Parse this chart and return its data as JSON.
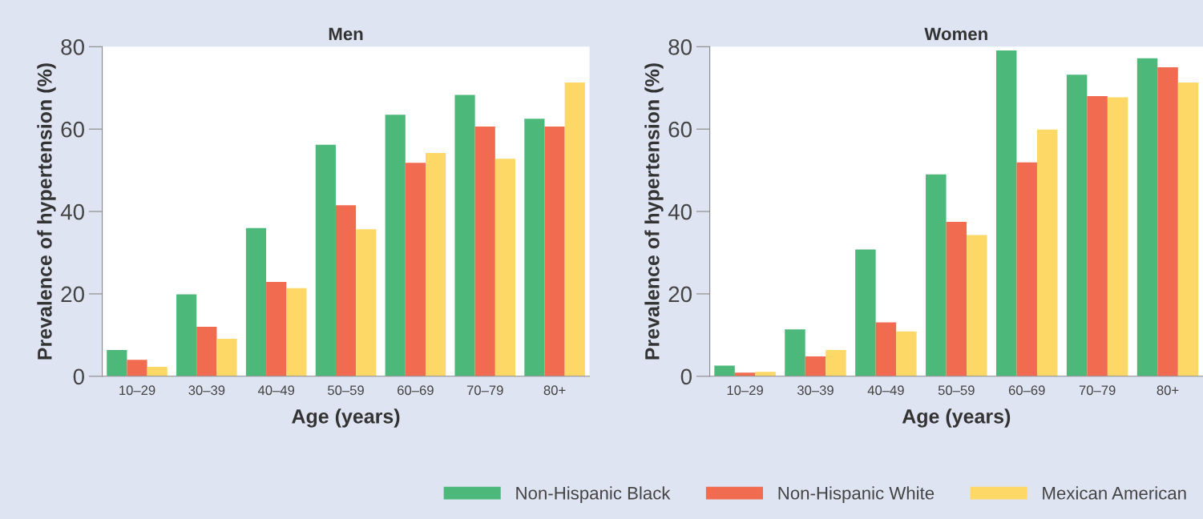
{
  "chart_data": [
    {
      "type": "bar",
      "title": "Men",
      "xlabel": "Age (years)",
      "ylabel": "Prevalence of hypertension (%)",
      "categories": [
        "10–29",
        "30–39",
        "40–49",
        "50–59",
        "60–69",
        "70–79",
        "80+"
      ],
      "ylim": [
        0,
        80
      ],
      "yticks": [
        0,
        20,
        40,
        60,
        80
      ],
      "grid": false,
      "legend": "bottom",
      "series": [
        {
          "name": "Non-Hispanic Black",
          "color": "#4cb87a",
          "values": [
            6.4,
            19.9,
            36.0,
            56.2,
            63.5,
            68.3,
            62.5
          ]
        },
        {
          "name": "Non-Hispanic White",
          "color": "#f06b50",
          "values": [
            4.0,
            12.0,
            22.9,
            41.5,
            51.8,
            60.6,
            60.6
          ]
        },
        {
          "name": "Mexican American",
          "color": "#fdd866",
          "values": [
            2.3,
            9.1,
            21.4,
            35.7,
            54.2,
            52.8,
            71.3
          ]
        }
      ]
    },
    {
      "type": "bar",
      "title": "Women",
      "xlabel": "Age (years)",
      "ylabel": "Prevalence of hypertension (%)",
      "categories": [
        "10–29",
        "30–39",
        "40–49",
        "50–59",
        "60–69",
        "70–79",
        "80+"
      ],
      "ylim": [
        0,
        80
      ],
      "yticks": [
        0,
        20,
        40,
        60,
        80
      ],
      "grid": false,
      "legend": "bottom",
      "series": [
        {
          "name": "Non-Hispanic Black",
          "color": "#4cb87a",
          "values": [
            2.6,
            11.4,
            30.8,
            49.0,
            79.1,
            73.2,
            77.2
          ]
        },
        {
          "name": "Non-Hispanic White",
          "color": "#f06b50",
          "values": [
            0.9,
            4.8,
            13.1,
            37.5,
            51.9,
            68.0,
            75.0
          ]
        },
        {
          "name": "Mexican American",
          "color": "#fdd866",
          "values": [
            1.1,
            6.4,
            10.9,
            34.3,
            59.9,
            67.7,
            71.3
          ]
        }
      ]
    }
  ]
}
